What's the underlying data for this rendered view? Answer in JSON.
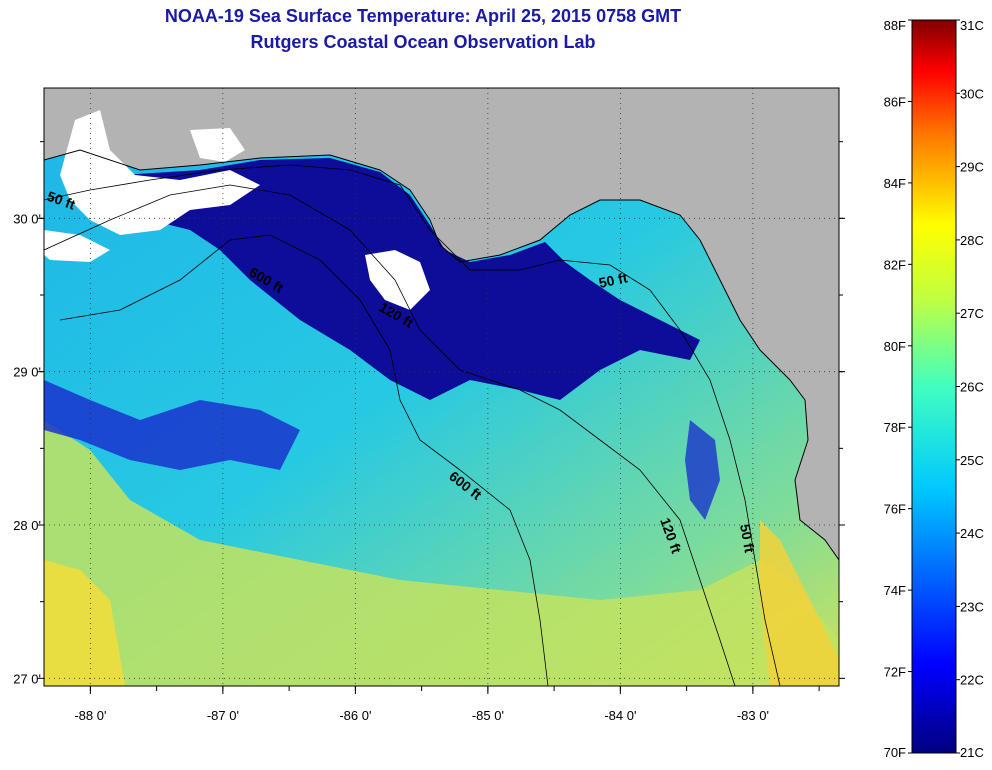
{
  "header": {
    "title": "NOAA-19 Sea Surface Temperature:  April 25, 2015 0758 GMT",
    "subtitle": "Rutgers Coastal Ocean Observation Lab"
  },
  "map": {
    "lon_range": [
      -88.35,
      -82.35
    ],
    "lat_range": [
      26.95,
      30.85
    ],
    "lon_ticks": [
      {
        "value": -88,
        "label": "-88 0'"
      },
      {
        "value": -87,
        "label": "-87 0'"
      },
      {
        "value": -86,
        "label": "-86 0'"
      },
      {
        "value": -85,
        "label": "-85 0'"
      },
      {
        "value": -84,
        "label": "-84 0'"
      },
      {
        "value": -83,
        "label": "-83 0'"
      }
    ],
    "lat_ticks": [
      {
        "value": 30,
        "label": "30 0'"
      },
      {
        "value": 29,
        "label": "29 0'"
      },
      {
        "value": 28,
        "label": "28 0'"
      },
      {
        "value": 27,
        "label": "27 0'"
      }
    ],
    "contour_labels": [
      "50 ft",
      "600 ft",
      "120 ft",
      "50 ft",
      "600 ft",
      "120 ft",
      "50 ft"
    ],
    "colors": {
      "land": "#b3b3b3",
      "cloud": "#ffffff",
      "cold": "#0d0d99",
      "mid": "#25c4e6",
      "warm": "#b5e36b",
      "hot": "#f2e03a"
    }
  },
  "colorbar": {
    "range_f": [
      70,
      88
    ],
    "range_c": [
      21,
      31
    ],
    "f_labels": [
      "88F",
      "86F",
      "84F",
      "82F",
      "80F",
      "78F",
      "76F",
      "74F",
      "72F",
      "70F"
    ],
    "c_labels": [
      "31C",
      "30C",
      "29C",
      "28C",
      "27C",
      "26C",
      "25C",
      "24C",
      "23C",
      "22C",
      "21C"
    ]
  }
}
